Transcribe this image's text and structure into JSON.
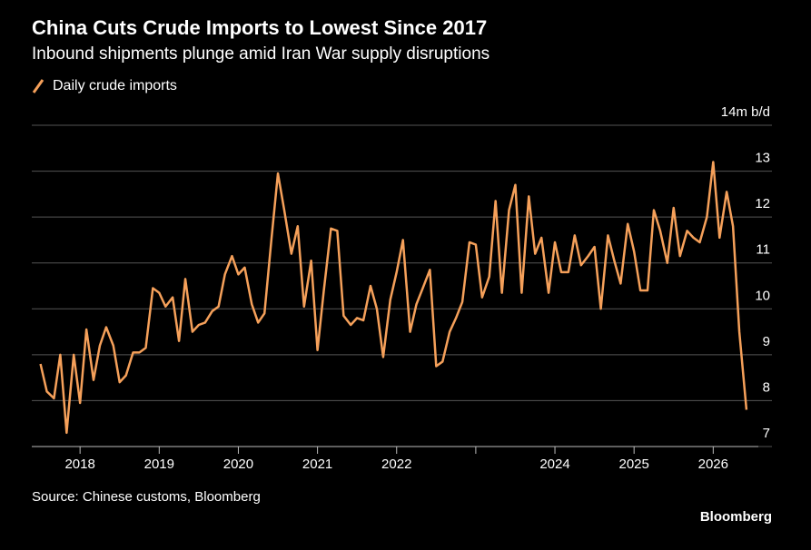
{
  "chart_data": {
    "type": "line",
    "title": "China Cuts Crude Imports to Lowest Since 2017",
    "subtitle": "Inbound shipments plunge amid Iran War supply disruptions",
    "source": "Source: Chinese customs, Bloomberg",
    "brand": "Bloomberg",
    "x": [
      2017.5,
      2017.58,
      2017.67,
      2017.75,
      2017.83,
      2017.92,
      2018,
      2018.08,
      2018.17,
      2018.25,
      2018.33,
      2018.42,
      2018.5,
      2018.58,
      2018.67,
      2018.75,
      2018.83,
      2018.92,
      2019,
      2019.08,
      2019.17,
      2019.25,
      2019.33,
      2019.42,
      2019.5,
      2019.58,
      2019.67,
      2019.75,
      2019.83,
      2019.92,
      2020,
      2020.08,
      2020.17,
      2020.25,
      2020.33,
      2020.42,
      2020.5,
      2020.58,
      2020.67,
      2020.75,
      2020.83,
      2020.92,
      2021,
      2021.08,
      2021.17,
      2021.25,
      2021.33,
      2021.42,
      2021.5,
      2021.58,
      2021.67,
      2021.75,
      2021.83,
      2021.92,
      2022,
      2022.08,
      2022.17,
      2022.25,
      2022.33,
      2022.42,
      2022.5,
      2022.58,
      2022.67,
      2022.75,
      2022.83,
      2022.92,
      2023,
      2023.08,
      2023.17,
      2023.25,
      2023.33,
      2023.42,
      2023.5,
      2023.58,
      2023.67,
      2023.75,
      2023.83,
      2023.92,
      2024,
      2024.08,
      2024.17,
      2024.25,
      2024.33,
      2024.42,
      2024.5,
      2024.58,
      2024.67,
      2024.75,
      2024.83,
      2024.92,
      2025,
      2025.08,
      2025.17,
      2025.25,
      2025.33,
      2025.42,
      2025.5,
      2025.58,
      2025.67,
      2025.75,
      2025.83,
      2025.92,
      2026,
      2026.08,
      2026.17,
      2026.25,
      2026.33,
      2026.42
    ],
    "series": [
      {
        "name": "Daily crude imports",
        "color": "#f5a05a",
        "values": [
          8.8,
          8.2,
          8.05,
          9.0,
          7.3,
          9.0,
          7.95,
          9.55,
          8.45,
          9.2,
          9.6,
          9.2,
          8.4,
          8.55,
          9.05,
          9.05,
          9.15,
          10.45,
          10.35,
          10.05,
          10.25,
          9.3,
          10.65,
          9.5,
          9.65,
          9.7,
          9.95,
          10.05,
          10.75,
          11.15,
          10.75,
          10.9,
          10.1,
          9.7,
          9.9,
          11.55,
          12.95,
          12.15,
          11.2,
          11.8,
          10.05,
          11.05,
          9.1,
          10.4,
          11.75,
          11.7,
          9.85,
          9.65,
          9.8,
          9.75,
          10.5,
          10.0,
          8.95,
          10.2,
          10.8,
          11.5,
          9.5,
          10.1,
          10.45,
          10.85,
          8.75,
          8.85,
          9.5,
          9.8,
          10.15,
          11.45,
          11.4,
          10.25,
          10.7,
          12.35,
          10.35,
          12.15,
          12.7,
          10.35,
          12.45,
          11.2,
          11.55,
          10.35,
          11.45,
          10.8,
          10.8,
          11.6,
          10.95,
          11.15,
          11.35,
          10.0,
          11.6,
          11.05,
          10.55,
          11.85,
          11.25,
          10.4,
          10.4,
          12.15,
          11.7,
          11.0,
          12.2,
          11.15,
          11.7,
          11.55,
          11.45,
          12.0,
          13.2,
          11.55,
          12.55,
          11.8,
          9.5,
          7.8
        ]
      }
    ],
    "xlim": [
      2017.39,
      2026.57
    ],
    "xticks": [
      2018,
      2019,
      2020,
      2021,
      2022,
      {
        "value": 2023,
        "label": null
      },
      2024,
      2025,
      2026
    ],
    "ylim": [
      7,
      14
    ],
    "yticks": [
      7,
      8,
      9,
      10,
      11,
      12,
      13,
      {
        "value": 14,
        "label": "14m b/d"
      }
    ],
    "grid": true
  }
}
